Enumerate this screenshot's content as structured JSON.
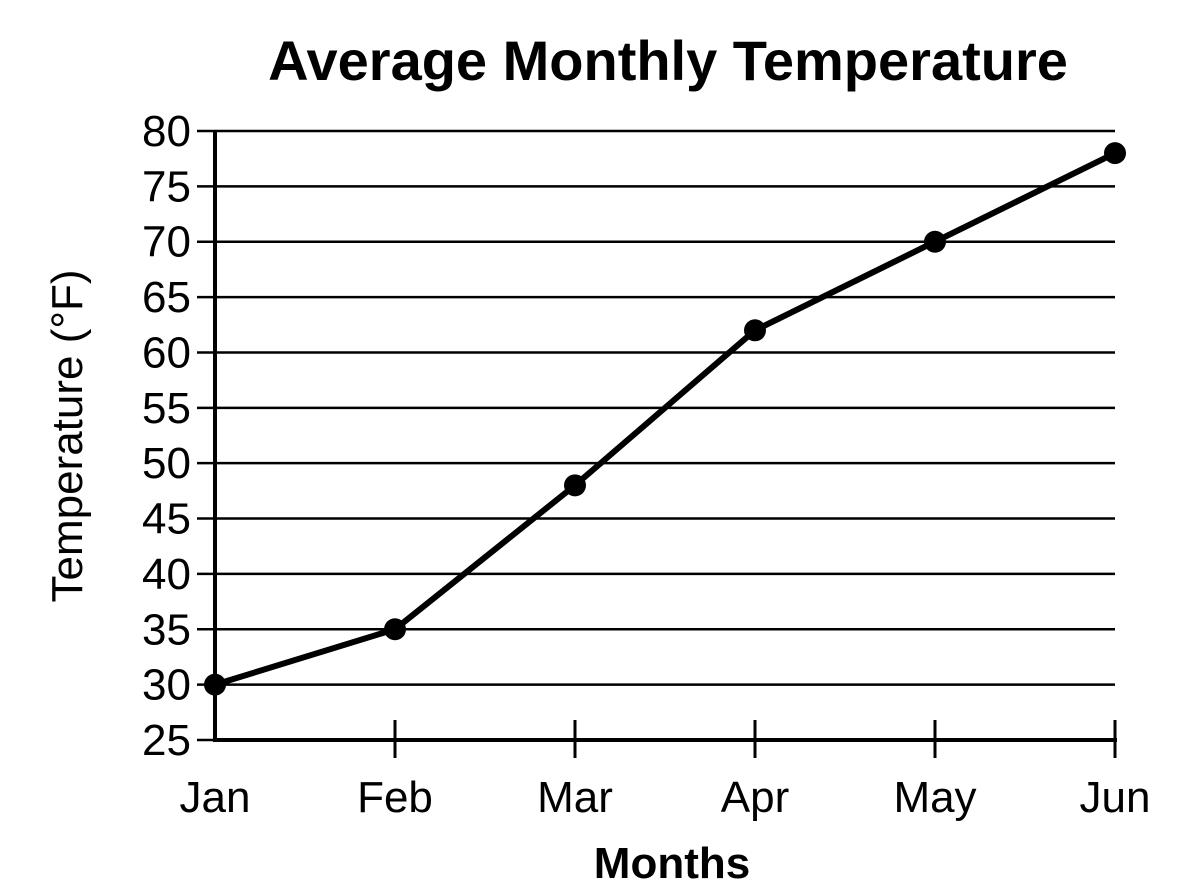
{
  "chart_data": {
    "type": "line",
    "title": "Average Monthly Temperature",
    "xlabel": "Months",
    "ylabel": "Temperature (°F)",
    "categories": [
      "Jan",
      "Feb",
      "Mar",
      "Apr",
      "May",
      "Jun"
    ],
    "series": [
      {
        "values": [
          30,
          35,
          48,
          62,
          70,
          78
        ],
        "color": "#000000"
      }
    ],
    "ylim": [
      25,
      80
    ],
    "yticks": [
      25,
      30,
      35,
      40,
      45,
      50,
      55,
      60,
      65,
      70,
      75,
      80
    ],
    "grid": true
  }
}
